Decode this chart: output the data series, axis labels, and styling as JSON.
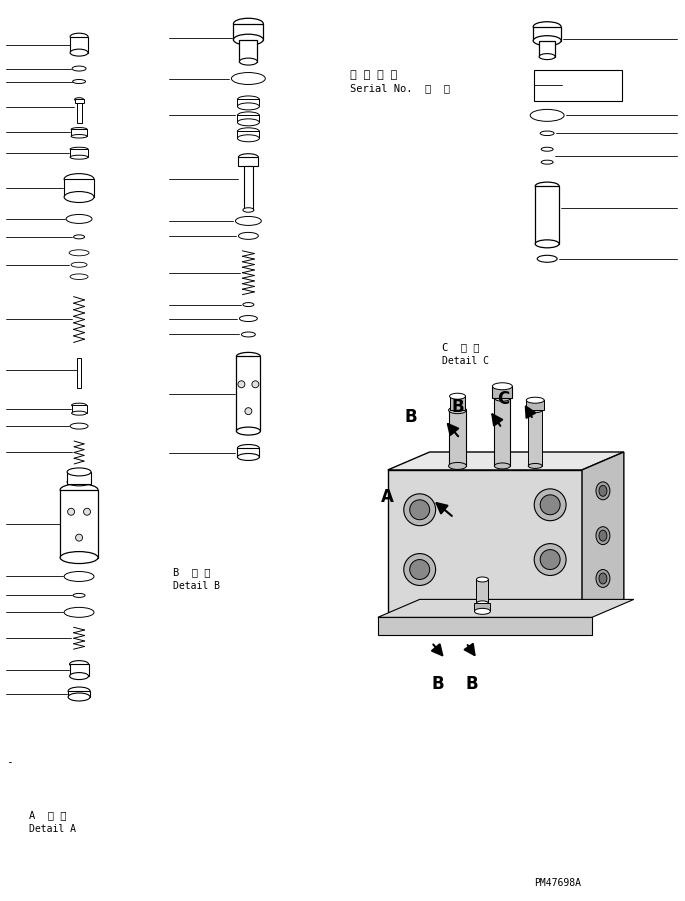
{
  "bg_color": "#ffffff",
  "fig_width": 6.85,
  "fig_height": 9.01,
  "dpi": 100,
  "label_A_japanese": "A  詳 細",
  "label_A_english": "Detail A",
  "label_B_japanese": "B  詳 細",
  "label_B_english": "Detail B",
  "label_C_japanese": "C  詳 細",
  "label_C_english": "Detail C",
  "serial_japanese": "適 用 号 機",
  "serial_english": "Serial No.  ・  ～",
  "part_number": "PM47698A",
  "text_color": "#000000",
  "line_color": "#000000"
}
